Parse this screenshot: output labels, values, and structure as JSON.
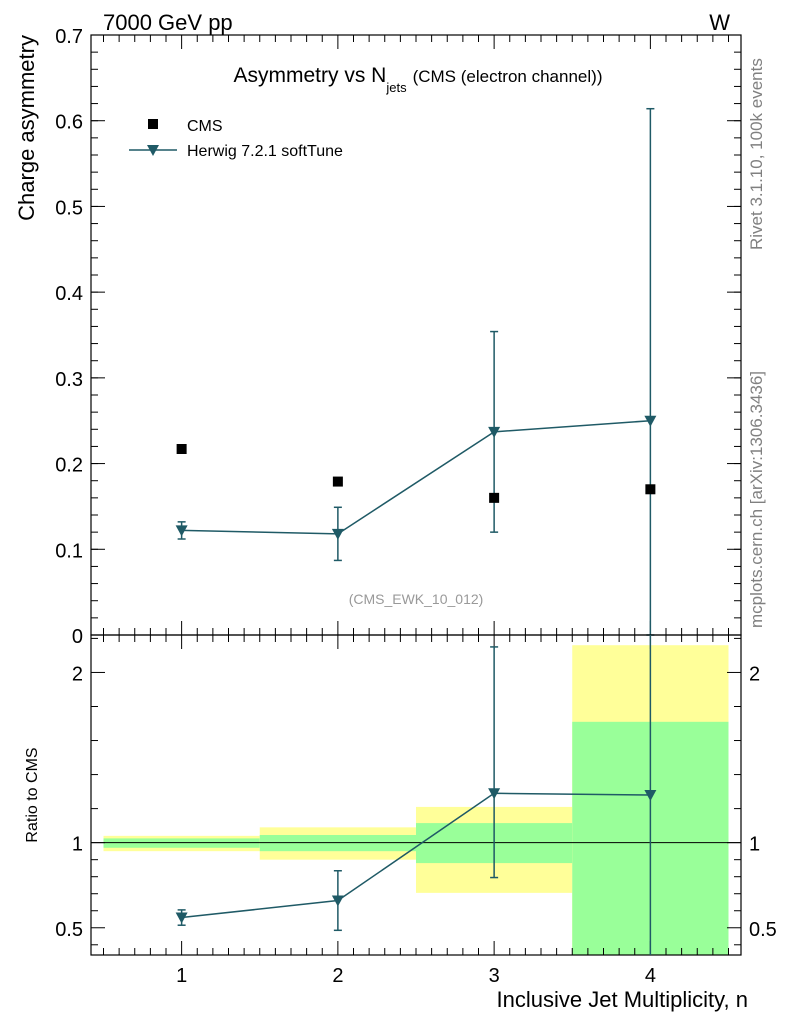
{
  "header": {
    "left": "7000 GeV pp",
    "right": "W"
  },
  "side_labels": {
    "top": "Rivet 3.1.10,  100k events",
    "bottom": "mcplots.cern.ch [arXiv:1306.3436]"
  },
  "analysis_tag": "(CMS_EWK_10_012)",
  "colors": {
    "mc": "#1f5a66",
    "data": "#000000",
    "band_inner": "#99ff99",
    "band_outer": "#ffff99"
  },
  "chart_data": [
    {
      "type": "scatter",
      "title": {
        "main": "Asymmetry vs N",
        "sub": "jets",
        "suffix": "(CMS (electron channel))"
      },
      "ylabel": "Charge asymmetry",
      "xlabel": "",
      "xlim": [
        0.42,
        4.58
      ],
      "ylim": [
        0,
        0.7
      ],
      "yticks": [
        {
          "v": 0,
          "label": "0"
        },
        {
          "v": 0.1,
          "label": "0.1"
        },
        {
          "v": 0.2,
          "label": "0.2"
        },
        {
          "v": 0.3,
          "label": "0.3"
        },
        {
          "v": 0.4,
          "label": "0.4"
        },
        {
          "v": 0.5,
          "label": "0.5"
        },
        {
          "v": 0.6,
          "label": "0.6"
        },
        {
          "v": 0.7,
          "label": "0.7"
        }
      ],
      "legend_placement": "top-left",
      "series": [
        {
          "name": "CMS",
          "marker": "square",
          "x": [
            1,
            2,
            3,
            4
          ],
          "y": [
            0.217,
            0.179,
            0.16,
            0.17
          ]
        },
        {
          "name": "Herwig 7.2.1 softTune",
          "marker": "triangle-down",
          "x": [
            1,
            2,
            3,
            4
          ],
          "y": [
            0.122,
            0.118,
            0.237,
            0.25
          ],
          "err_lo": [
            0.112,
            0.087,
            0.12,
            0.0
          ],
          "err_hi": [
            0.132,
            0.149,
            0.354,
            0.614
          ]
        }
      ]
    },
    {
      "type": "scatter",
      "title": "",
      "ylabel": "Ratio to CMS",
      "xlabel": "Inclusive Jet Multiplicity, n",
      "xlim": [
        0.42,
        4.58
      ],
      "ylim": [
        0.34,
        2.22
      ],
      "xticks": [
        {
          "v": 1,
          "label": "1"
        },
        {
          "v": 2,
          "label": "2"
        },
        {
          "v": 3,
          "label": "3"
        },
        {
          "v": 4,
          "label": "4"
        }
      ],
      "yticks": [
        {
          "v": 0.5,
          "label": "0.5"
        },
        {
          "v": 1,
          "label": "1"
        },
        {
          "v": 2,
          "label": "2"
        }
      ],
      "reference_line": 1,
      "bands": [
        {
          "x0": 0.5,
          "x1": 1.5,
          "outer": [
            0.95,
            1.04
          ],
          "inner": [
            0.97,
            1.025
          ]
        },
        {
          "x0": 1.5,
          "x1": 2.5,
          "outer": [
            0.9,
            1.09
          ],
          "inner": [
            0.95,
            1.045
          ]
        },
        {
          "x0": 2.5,
          "x1": 3.5,
          "outer": [
            0.705,
            1.21
          ],
          "inner": [
            0.88,
            1.115
          ]
        },
        {
          "x0": 3.5,
          "x1": 4.5,
          "outer": [
            0.34,
            2.16
          ],
          "inner": [
            0.34,
            1.71
          ]
        }
      ],
      "series": [
        {
          "name": "Herwig 7.2.1 softTune",
          "marker": "triangle-down",
          "x": [
            1,
            2,
            3,
            4
          ],
          "y": [
            0.56,
            0.66,
            1.29,
            1.28
          ],
          "err_lo": [
            0.515,
            0.485,
            0.795,
            0.34
          ],
          "err_hi": [
            0.605,
            0.835,
            2.15,
            2.22
          ]
        }
      ]
    }
  ]
}
